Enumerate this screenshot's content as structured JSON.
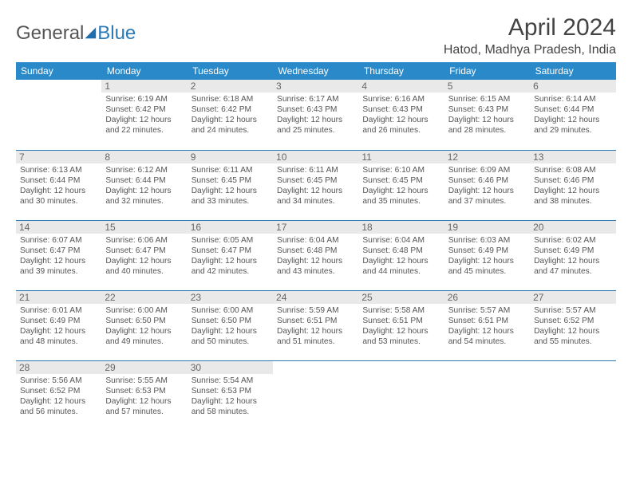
{
  "brand": {
    "part1": "General",
    "part2": "Blue"
  },
  "title": "April 2024",
  "location": "Hatod, Madhya Pradesh, India",
  "colors": {
    "header_bg": "#2a8ac9",
    "border": "#2a7ab8",
    "daynum_bg": "#e9e9e9"
  },
  "weekdays": [
    "Sunday",
    "Monday",
    "Tuesday",
    "Wednesday",
    "Thursday",
    "Friday",
    "Saturday"
  ],
  "start_offset": 1,
  "days": [
    {
      "n": 1,
      "sr": "6:19 AM",
      "ss": "6:42 PM",
      "dl": "12 hours and 22 minutes."
    },
    {
      "n": 2,
      "sr": "6:18 AM",
      "ss": "6:42 PM",
      "dl": "12 hours and 24 minutes."
    },
    {
      "n": 3,
      "sr": "6:17 AM",
      "ss": "6:43 PM",
      "dl": "12 hours and 25 minutes."
    },
    {
      "n": 4,
      "sr": "6:16 AM",
      "ss": "6:43 PM",
      "dl": "12 hours and 26 minutes."
    },
    {
      "n": 5,
      "sr": "6:15 AM",
      "ss": "6:43 PM",
      "dl": "12 hours and 28 minutes."
    },
    {
      "n": 6,
      "sr": "6:14 AM",
      "ss": "6:44 PM",
      "dl": "12 hours and 29 minutes."
    },
    {
      "n": 7,
      "sr": "6:13 AM",
      "ss": "6:44 PM",
      "dl": "12 hours and 30 minutes."
    },
    {
      "n": 8,
      "sr": "6:12 AM",
      "ss": "6:44 PM",
      "dl": "12 hours and 32 minutes."
    },
    {
      "n": 9,
      "sr": "6:11 AM",
      "ss": "6:45 PM",
      "dl": "12 hours and 33 minutes."
    },
    {
      "n": 10,
      "sr": "6:11 AM",
      "ss": "6:45 PM",
      "dl": "12 hours and 34 minutes."
    },
    {
      "n": 11,
      "sr": "6:10 AM",
      "ss": "6:45 PM",
      "dl": "12 hours and 35 minutes."
    },
    {
      "n": 12,
      "sr": "6:09 AM",
      "ss": "6:46 PM",
      "dl": "12 hours and 37 minutes."
    },
    {
      "n": 13,
      "sr": "6:08 AM",
      "ss": "6:46 PM",
      "dl": "12 hours and 38 minutes."
    },
    {
      "n": 14,
      "sr": "6:07 AM",
      "ss": "6:47 PM",
      "dl": "12 hours and 39 minutes."
    },
    {
      "n": 15,
      "sr": "6:06 AM",
      "ss": "6:47 PM",
      "dl": "12 hours and 40 minutes."
    },
    {
      "n": 16,
      "sr": "6:05 AM",
      "ss": "6:47 PM",
      "dl": "12 hours and 42 minutes."
    },
    {
      "n": 17,
      "sr": "6:04 AM",
      "ss": "6:48 PM",
      "dl": "12 hours and 43 minutes."
    },
    {
      "n": 18,
      "sr": "6:04 AM",
      "ss": "6:48 PM",
      "dl": "12 hours and 44 minutes."
    },
    {
      "n": 19,
      "sr": "6:03 AM",
      "ss": "6:49 PM",
      "dl": "12 hours and 45 minutes."
    },
    {
      "n": 20,
      "sr": "6:02 AM",
      "ss": "6:49 PM",
      "dl": "12 hours and 47 minutes."
    },
    {
      "n": 21,
      "sr": "6:01 AM",
      "ss": "6:49 PM",
      "dl": "12 hours and 48 minutes."
    },
    {
      "n": 22,
      "sr": "6:00 AM",
      "ss": "6:50 PM",
      "dl": "12 hours and 49 minutes."
    },
    {
      "n": 23,
      "sr": "6:00 AM",
      "ss": "6:50 PM",
      "dl": "12 hours and 50 minutes."
    },
    {
      "n": 24,
      "sr": "5:59 AM",
      "ss": "6:51 PM",
      "dl": "12 hours and 51 minutes."
    },
    {
      "n": 25,
      "sr": "5:58 AM",
      "ss": "6:51 PM",
      "dl": "12 hours and 53 minutes."
    },
    {
      "n": 26,
      "sr": "5:57 AM",
      "ss": "6:51 PM",
      "dl": "12 hours and 54 minutes."
    },
    {
      "n": 27,
      "sr": "5:57 AM",
      "ss": "6:52 PM",
      "dl": "12 hours and 55 minutes."
    },
    {
      "n": 28,
      "sr": "5:56 AM",
      "ss": "6:52 PM",
      "dl": "12 hours and 56 minutes."
    },
    {
      "n": 29,
      "sr": "5:55 AM",
      "ss": "6:53 PM",
      "dl": "12 hours and 57 minutes."
    },
    {
      "n": 30,
      "sr": "5:54 AM",
      "ss": "6:53 PM",
      "dl": "12 hours and 58 minutes."
    }
  ],
  "labels": {
    "sunrise": "Sunrise:",
    "sunset": "Sunset:",
    "daylight": "Daylight:"
  }
}
